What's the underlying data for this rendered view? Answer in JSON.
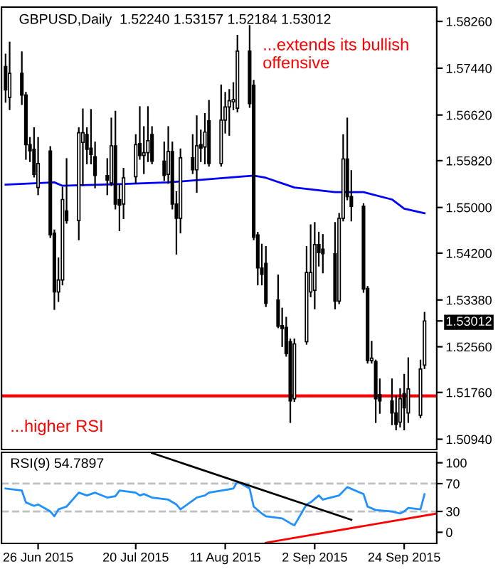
{
  "chart_data": [
    {
      "type": "candlestick",
      "title": "GBPUSD,Daily  1.52240 1.53157 1.52184 1.53012",
      "annotations": [
        "...extends its bullish\noffensive",
        "...higher RSI"
      ],
      "color": "#000000",
      "x": [
        "2015-06-18",
        "2015-06-19",
        "2015-06-22",
        "2015-06-23",
        "2015-06-24",
        "2015-06-25",
        "2015-06-26",
        "2015-06-29",
        "2015-06-30",
        "2015-07-01",
        "2015-07-02",
        "2015-07-03",
        "2015-07-06",
        "2015-07-07",
        "2015-07-08",
        "2015-07-09",
        "2015-07-10",
        "2015-07-13",
        "2015-07-14",
        "2015-07-15",
        "2015-07-16",
        "2015-07-17",
        "2015-07-20",
        "2015-07-21",
        "2015-07-22",
        "2015-07-23",
        "2015-07-24",
        "2015-07-27",
        "2015-07-28",
        "2015-07-29",
        "2015-07-30",
        "2015-07-31",
        "2015-08-03",
        "2015-08-04",
        "2015-08-05",
        "2015-08-06",
        "2015-08-07",
        "2015-08-10",
        "2015-08-11",
        "2015-08-12",
        "2015-08-13",
        "2015-08-14",
        "2015-08-17",
        "2015-08-18",
        "2015-08-19",
        "2015-08-20",
        "2015-08-21",
        "2015-08-24",
        "2015-08-25",
        "2015-08-26",
        "2015-08-27",
        "2015-08-28",
        "2015-08-31",
        "2015-09-01",
        "2015-09-02",
        "2015-09-03",
        "2015-09-04",
        "2015-09-07",
        "2015-09-08",
        "2015-09-09",
        "2015-09-10",
        "2015-09-11",
        "2015-09-14",
        "2015-09-15",
        "2015-09-16",
        "2015-09-17",
        "2015-09-18",
        "2015-09-21",
        "2015-09-22",
        "2015-09-23",
        "2015-09-24",
        "2015-09-25",
        "2015-09-28",
        "2015-09-29"
      ],
      "ohlc": [
        [
          1.5747,
          1.5768,
          1.5685,
          1.5706
        ],
        [
          1.5693,
          1.5789,
          1.5672,
          1.5735
        ],
        [
          1.5735,
          1.5772,
          1.5681,
          1.5697
        ],
        [
          1.5697,
          1.5701,
          1.5585,
          1.561
        ],
        [
          1.561,
          1.5622,
          1.5581,
          1.5599
        ],
        [
          1.5602,
          1.5639,
          1.5554,
          1.5558
        ],
        [
          1.5535,
          1.5622,
          1.5523,
          1.5577
        ],
        [
          1.5599,
          1.5606,
          1.5448,
          1.5452
        ],
        [
          1.5455,
          1.546,
          1.5322,
          1.5352
        ],
        [
          1.5352,
          1.5411,
          1.5336,
          1.5373
        ],
        [
          1.5373,
          1.5535,
          1.5365,
          1.5514
        ],
        [
          1.5494,
          1.5585,
          1.5473,
          1.5477
        ],
        [
          1.5477,
          1.5639,
          1.5444,
          1.5631
        ],
        [
          1.5614,
          1.5672,
          1.5539,
          1.5631
        ],
        [
          1.5628,
          1.5639,
          1.5577,
          1.5602
        ],
        [
          1.5604,
          1.5671,
          1.5577,
          1.5593
        ],
        [
          1.5589,
          1.5614,
          1.5535,
          1.5556
        ],
        [
          1.5556,
          1.5585,
          1.5523,
          1.5548
        ],
        [
          1.5543,
          1.5656,
          1.5539,
          1.5608
        ],
        [
          1.5608,
          1.5668,
          1.5498,
          1.5506
        ],
        [
          1.5514,
          1.5539,
          1.546,
          1.5504
        ],
        [
          1.5506,
          1.5568,
          1.5481,
          1.5552
        ],
        [
          1.5554,
          1.5627,
          1.5543,
          1.561
        ],
        [
          1.5612,
          1.5676,
          1.5585,
          1.5591
        ],
        [
          1.5591,
          1.5641,
          1.556,
          1.5596
        ],
        [
          1.5596,
          1.5676,
          1.5581,
          1.5617
        ],
        [
          1.5628,
          1.5641,
          1.5577,
          1.5581
        ],
        [
          1.5581,
          1.5614,
          1.5548,
          1.5556
        ],
        [
          1.5558,
          1.5641,
          1.5543,
          1.5598
        ],
        [
          1.5598,
          1.5614,
          1.5498,
          1.5506
        ],
        [
          1.5506,
          1.5527,
          1.5419,
          1.5481
        ],
        [
          1.5481,
          1.5602,
          1.5456,
          1.5587
        ],
        [
          1.5587,
          1.5627,
          1.556,
          1.5566
        ],
        [
          1.5566,
          1.566,
          1.5527,
          1.5608
        ],
        [
          1.561,
          1.5635,
          1.5581,
          1.5604
        ],
        [
          1.5606,
          1.5664,
          1.5577,
          1.5632
        ],
        [
          1.5652,
          1.5687,
          1.5573,
          1.5577
        ],
        [
          1.5577,
          1.5714,
          1.5573,
          1.5653
        ],
        [
          1.5653,
          1.5701,
          1.5631,
          1.5676
        ],
        [
          1.5676,
          1.5706,
          1.5627,
          1.5687
        ],
        [
          1.5685,
          1.5718,
          1.5672,
          1.5689
        ],
        [
          1.5674,
          1.5801,
          1.5668,
          1.5774
        ],
        [
          1.5774,
          1.5818,
          1.5676,
          1.5682
        ],
        [
          1.5714,
          1.5722,
          1.5444,
          1.5448
        ],
        [
          1.5452,
          1.5456,
          1.5365,
          1.5394
        ],
        [
          1.5394,
          1.5435,
          1.5365,
          1.5383
        ],
        [
          1.5402,
          1.5431,
          1.5327,
          1.5332
        ],
        [
          1.5338,
          1.5381,
          1.529,
          1.5292
        ],
        [
          1.5293,
          1.5323,
          1.5257,
          1.5288
        ],
        [
          1.529,
          1.5307,
          1.524,
          1.5244
        ],
        [
          1.5265,
          1.5269,
          1.5124,
          1.5161
        ],
        [
          1.5165,
          1.5269,
          1.5161,
          1.5261
        ],
        [
          1.5265,
          1.5431,
          1.5261,
          1.5386
        ],
        [
          1.5352,
          1.5469,
          1.5344,
          1.5386
        ],
        [
          1.5355,
          1.5473,
          1.5323,
          1.5435
        ],
        [
          1.5435,
          1.5456,
          1.5398,
          1.5421
        ],
        [
          1.5427,
          1.5452,
          1.5386,
          1.5419
        ],
        [
          1.5419,
          1.5473,
          1.5323,
          1.5336
        ],
        [
          1.5336,
          1.5489,
          1.5332,
          1.5481
        ],
        [
          1.5481,
          1.5627,
          1.5477,
          1.5585
        ],
        [
          1.5585,
          1.5656,
          1.5514,
          1.5519
        ],
        [
          1.5519,
          1.5564,
          1.5477,
          1.5502
        ],
        [
          1.5502,
          1.5506,
          1.5352,
          1.5357
        ],
        [
          1.5358,
          1.5361,
          1.5228,
          1.5232
        ],
        [
          1.5232,
          1.5265,
          1.5228,
          1.5236
        ],
        [
          1.523,
          1.5232,
          1.5124,
          1.5165
        ],
        [
          1.5172,
          1.5199,
          1.514,
          1.5161
        ],
        [
          1.5161,
          1.5199,
          1.512,
          1.514
        ],
        [
          1.514,
          1.5169,
          1.5111,
          1.512
        ],
        [
          1.5124,
          1.5182,
          1.5116,
          1.5165
        ],
        [
          1.5174,
          1.5207,
          1.5111,
          1.5149
        ],
        [
          1.514,
          1.5236,
          1.5124,
          1.5182
        ],
        [
          1.5136,
          1.5232,
          1.5132,
          1.5217
        ],
        [
          1.5224,
          1.53157,
          1.52184,
          1.53012
        ]
      ],
      "series": [
        {
          "type": "line",
          "color": "#0000ff",
          "x": [
            "2015-06-18",
            "2015-06-30",
            "2015-07-02",
            "2015-07-16",
            "2015-07-28",
            "2015-08-06",
            "2015-08-18",
            "2015-08-21",
            "2015-08-28",
            "2015-09-07",
            "2015-09-14",
            "2015-09-21",
            "2015-09-24",
            "2015-09-29"
          ],
          "values": [
            1.554,
            1.5544,
            1.5538,
            1.5541,
            1.5544,
            1.5549,
            1.5556,
            1.5552,
            1.5535,
            1.5527,
            1.5527,
            1.5514,
            1.5498,
            1.549
          ]
        }
      ],
      "ref_lines": [
        {
          "axis": "y",
          "value": 1.517,
          "color": "#ff0000"
        }
      ],
      "xlim": [
        "2015-06-17",
        "2015-10-02"
      ],
      "ylim": [
        1.5076,
        1.5851
      ],
      "yticks": [
        {
          "value": 1.5826,
          "label": "1.58260"
        },
        {
          "value": 1.5744,
          "label": "1.57440"
        },
        {
          "value": 1.5662,
          "label": "1.56620"
        },
        {
          "value": 1.5582,
          "label": "1.55820"
        },
        {
          "value": 1.55,
          "label": "1.55000"
        },
        {
          "value": 1.542,
          "label": "1.54200"
        },
        {
          "value": 1.5338,
          "label": "1.53380"
        },
        {
          "value": 1.53012,
          "label": "1.53012"
        },
        {
          "value": 1.5256,
          "label": "1.52560"
        },
        {
          "value": 1.5176,
          "label": "1.51760"
        },
        {
          "value": 1.5094,
          "label": "1.50940"
        }
      ],
      "tick_labels": "y"
    },
    {
      "type": "line",
      "title": "RSI(9) 54.7897",
      "series": [
        {
          "type": "line",
          "color": "#1e90ff",
          "x": [
            "2015-06-18",
            "2015-06-22",
            "2015-06-23",
            "2015-06-25",
            "2015-06-26",
            "2015-06-29",
            "2015-06-30",
            "2015-07-01",
            "2015-07-03",
            "2015-07-06",
            "2015-07-08",
            "2015-07-10",
            "2015-07-13",
            "2015-07-15",
            "2015-07-16",
            "2015-07-20",
            "2015-07-21",
            "2015-07-22",
            "2015-07-24",
            "2015-07-28",
            "2015-07-30",
            "2015-07-31",
            "2015-08-04",
            "2015-08-06",
            "2015-08-07",
            "2015-08-11",
            "2015-08-13",
            "2015-08-14",
            "2015-08-17",
            "2015-08-18",
            "2015-08-20",
            "2015-08-21",
            "2015-08-25",
            "2015-08-27",
            "2015-08-28",
            "2015-08-31",
            "2015-09-01",
            "2015-09-03",
            "2015-09-04",
            "2015-09-08",
            "2015-09-10",
            "2015-09-14",
            "2015-09-15",
            "2015-09-17",
            "2015-09-21",
            "2015-09-23",
            "2015-09-24",
            "2015-09-25",
            "2015-09-28",
            "2015-09-29"
          ],
          "values": [
            63,
            60,
            43,
            38,
            40,
            30,
            23,
            33,
            37,
            57,
            53,
            57,
            50,
            52,
            60,
            57,
            53,
            55,
            50,
            47,
            40,
            33,
            50,
            53,
            57,
            61,
            63,
            73,
            63,
            37,
            27,
            23,
            20,
            13,
            10,
            40,
            43,
            53,
            47,
            53,
            65,
            55,
            37,
            32,
            30,
            27,
            30,
            35,
            33,
            54.7897
          ]
        },
        {
          "type": "line",
          "color": "#000000",
          "x": [
            "2015-07-24",
            "2015-09-11"
          ],
          "values": [
            114,
            18
          ]
        },
        {
          "type": "line",
          "color": "#ff0000",
          "x": [
            "2015-08-21",
            "2015-10-02"
          ],
          "values": [
            -15,
            27
          ]
        }
      ],
      "ref_lines": [
        {
          "axis": "y",
          "value": 70,
          "color": "#c0c0c0",
          "line_style": "dashed"
        },
        {
          "axis": "y",
          "value": 30,
          "color": "#c0c0c0",
          "line_style": "dashed"
        }
      ],
      "xlim": [
        "2015-06-17",
        "2015-10-02"
      ],
      "ylim": [
        -16,
        115
      ],
      "yticks": [
        100,
        70,
        30,
        0
      ],
      "xticks": [
        {
          "value": "2015-06-26",
          "label": "26 Jun 2015"
        },
        {
          "value": "2015-07-20",
          "label": "20 Jul 2015"
        },
        {
          "value": "2015-08-11",
          "label": "11 Aug 2015"
        },
        {
          "value": "2015-09-02",
          "label": "2 Sep 2015"
        },
        {
          "value": "2015-09-24",
          "label": "24 Sep 2015"
        }
      ]
    }
  ]
}
